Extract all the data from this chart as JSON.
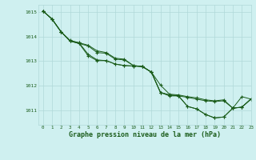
{
  "title": "Graphe pression niveau de la mer (hPa)",
  "background_color": "#cff0f0",
  "grid_color": "#b0d8d8",
  "line_color": "#1a5c1a",
  "xlim": [
    -0.5,
    23
  ],
  "ylim": [
    1010.4,
    1015.3
  ],
  "yticks": [
    1011,
    1012,
    1013,
    1014,
    1015
  ],
  "xticks": [
    0,
    1,
    2,
    3,
    4,
    5,
    6,
    7,
    8,
    9,
    10,
    11,
    12,
    13,
    14,
    15,
    16,
    17,
    18,
    19,
    20,
    21,
    22,
    23
  ],
  "series": [
    [
      1015.05,
      1014.72,
      1014.2,
      1013.82,
      1013.75,
      1013.27,
      1013.05,
      1013.02,
      1012.9,
      1012.88,
      1012.82,
      1012.78,
      1012.5,
      1012.0,
      1011.65,
      1011.62,
      1011.55,
      1011.5,
      1011.45,
      1011.42,
      1011.45,
      1011.05,
      1011.55,
      1011.45
    ],
    [
      1015.05,
      1014.72,
      1014.2,
      1013.82,
      1013.72,
      1013.22,
      1013.02,
      1013.02,
      1012.92,
      1012.88,
      1012.82,
      1012.78,
      1012.5,
      1011.72,
      1011.57,
      1011.57,
      1011.52,
      1011.45,
      1011.4,
      1011.38,
      1011.42,
      1011.05,
      1011.12,
      1011.45
    ],
    [
      1015.05,
      1014.72,
      1014.2,
      1013.82,
      1013.72,
      1013.62,
      1013.35,
      1013.32,
      1013.1,
      1013.08,
      1012.82,
      1012.78,
      1012.5,
      1011.72,
      1011.62,
      1011.57,
      1011.52,
      1011.45,
      1011.4,
      1011.38,
      1011.42,
      1011.05,
      1011.12,
      1011.45
    ],
    [
      1015.05,
      1014.72,
      1014.2,
      1013.85,
      1013.75,
      1013.65,
      1013.42,
      1013.35,
      1013.15,
      1013.08,
      1012.82,
      1012.78,
      1012.55,
      1011.72,
      1011.62,
      1011.57,
      1011.52,
      1011.45,
      1011.4,
      1011.38,
      1011.42,
      1011.05,
      1011.12,
      1011.45
    ]
  ],
  "series2": [
    [
      1015.05,
      1014.72,
      1014.2,
      1013.82,
      1013.75,
      1013.27,
      1013.05,
      1013.02,
      1012.9,
      1012.88,
      1012.82,
      1012.78,
      1012.5,
      1012.0,
      1011.65,
      1011.62,
      1010.9,
      1010.88,
      1010.82,
      1010.72,
      1010.75,
      1011.08,
      1011.55,
      1011.45
    ],
    [
      1015.05,
      1014.72,
      1014.2,
      1013.82,
      1013.72,
      1013.22,
      1013.02,
      1013.02,
      1012.92,
      1012.88,
      1012.82,
      1012.78,
      1012.5,
      1011.72,
      1011.57,
      1011.57,
      1010.9,
      1010.85,
      1010.78,
      1010.68,
      1010.72,
      1011.08,
      1011.12,
      1011.45
    ],
    [
      1015.05,
      1014.72,
      1014.2,
      1013.82,
      1013.72,
      1013.62,
      1013.35,
      1013.32,
      1013.1,
      1013.08,
      1012.82,
      1012.78,
      1012.5,
      1011.72,
      1011.62,
      1011.57,
      1011.15,
      1011.05,
      1010.82,
      1010.68,
      1010.72,
      1011.08,
      1011.12,
      1011.45
    ],
    [
      1015.05,
      1014.72,
      1014.2,
      1013.85,
      1013.75,
      1013.65,
      1013.42,
      1013.35,
      1013.15,
      1013.08,
      1012.82,
      1012.78,
      1012.55,
      1011.72,
      1011.62,
      1011.57,
      1011.15,
      1011.05,
      1010.82,
      1010.68,
      1010.72,
      1011.08,
      1011.12,
      1011.45
    ]
  ]
}
